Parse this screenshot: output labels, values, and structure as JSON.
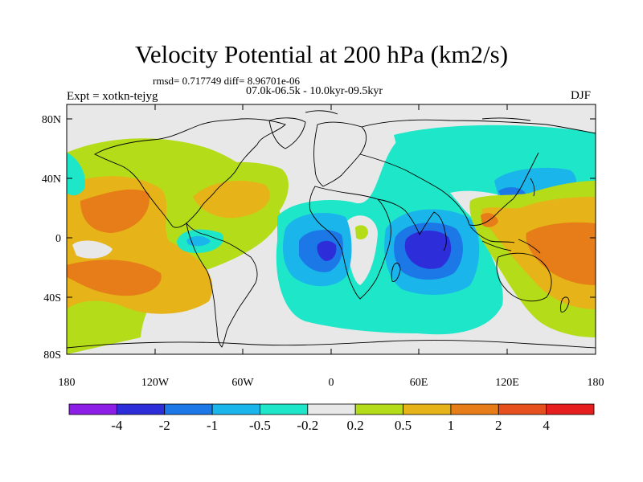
{
  "title": "Velocity Potential at 200 hPa (km2/s)",
  "stats": "rmsd= 0.717749 diff= 8.96701e-06",
  "period": "07.0k-06.5k - 10.0kyr-09.5kyr",
  "experiment": "Expt = xotkn-tejyg",
  "season": "DJF",
  "y_axis": {
    "ticks": [
      "80N",
      "40N",
      "0",
      "40S",
      "80S"
    ]
  },
  "x_axis": {
    "ticks": [
      "180",
      "120W",
      "60W",
      "0",
      "60E",
      "120E",
      "180"
    ]
  },
  "colorbar": {
    "colors": [
      "#8c1ee6",
      "#2d2dd9",
      "#1c78e6",
      "#19b5eb",
      "#1ee6c8",
      "#e8e8e8",
      "#b4dc19",
      "#e6b419",
      "#e67d19",
      "#e6501e",
      "#e61e1e"
    ],
    "labels": [
      "-4",
      "-2",
      "-1",
      "-0.5",
      "-0.2",
      "0.2",
      "0.5",
      "1",
      "2",
      "4"
    ]
  },
  "field_colors": {
    "neutral": "#e8e8e8",
    "pos1": "#b4dc19",
    "pos2": "#e6b419",
    "pos3": "#e67d19",
    "neg1": "#1ee6c8",
    "neg2": "#19b5eb",
    "neg3": "#1c78e6",
    "neg4": "#2d2dd9"
  },
  "legend_title_units": "km2/s"
}
